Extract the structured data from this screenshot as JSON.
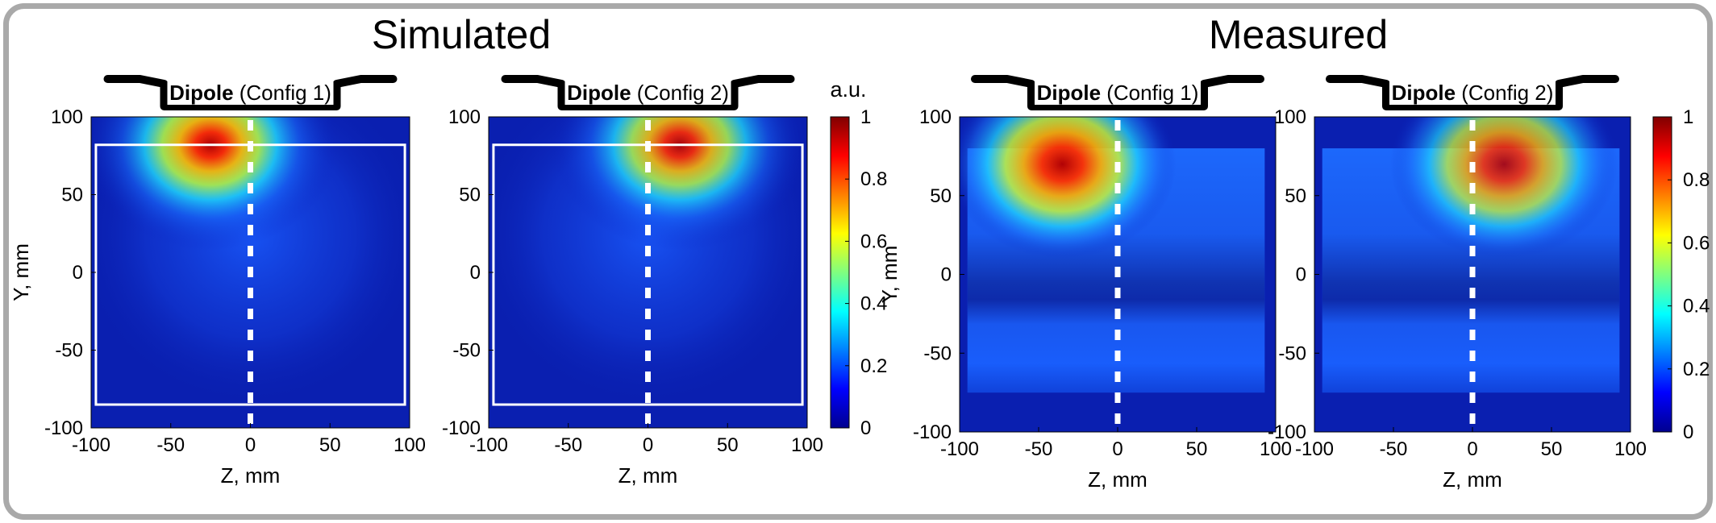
{
  "sections": [
    {
      "title": "Simulated"
    },
    {
      "title": "Measured"
    }
  ],
  "colorbars": [
    {
      "unit_label": "a.u.",
      "ticks": [
        "0",
        "0.2",
        "0.4",
        "0.6",
        "0.8",
        "1"
      ]
    },
    {
      "unit_label": "",
      "ticks": [
        "0",
        "0.2",
        "0.4",
        "0.6",
        "0.8",
        "1"
      ]
    }
  ],
  "chart_data": [
    {
      "type": "heatmap",
      "section": "Simulated",
      "header_bold": "Dipole",
      "header_normal": "(Config 1)",
      "xlabel": "Z, mm",
      "ylabel": "Y, mm",
      "xlim": [
        -100,
        100
      ],
      "ylim": [
        -100,
        100
      ],
      "xticks": [
        "-100",
        "-50",
        "0",
        "50",
        "100"
      ],
      "yticks": [
        "100",
        "50",
        "0",
        "-50",
        "-100"
      ],
      "colormap": "jet",
      "clim": [
        0,
        1
      ],
      "peak": {
        "z": -25,
        "y": 82,
        "value": 1.0
      },
      "outline_box": {
        "z": [
          -97,
          97
        ],
        "y": [
          -85,
          82
        ]
      },
      "centerline_z": 0
    },
    {
      "type": "heatmap",
      "section": "Simulated",
      "header_bold": "Dipole",
      "header_normal": "(Config 2)",
      "xlabel": "Z, mm",
      "ylabel": "",
      "xlim": [
        -100,
        100
      ],
      "ylim": [
        -100,
        100
      ],
      "xticks": [
        "-100",
        "-50",
        "0",
        "50",
        "100"
      ],
      "yticks": [
        "100",
        "50",
        "0",
        "-50",
        "-100"
      ],
      "colormap": "jet",
      "clim": [
        0,
        1
      ],
      "peak": {
        "z": 20,
        "y": 82,
        "value": 0.95
      },
      "outline_box": {
        "z": [
          -97,
          97
        ],
        "y": [
          -85,
          82
        ]
      },
      "centerline_z": 0
    },
    {
      "type": "heatmap",
      "section": "Measured",
      "header_bold": "Dipole",
      "header_normal": "(Config 1)",
      "xlabel": "Z, mm",
      "ylabel": "Y, mm",
      "xlim": [
        -100,
        100
      ],
      "ylim": [
        -100,
        100
      ],
      "xticks": [
        "-100",
        "-50",
        "0",
        "50",
        "100"
      ],
      "yticks": [
        "100",
        "50",
        "0",
        "-50",
        "-100"
      ],
      "colormap": "jet",
      "clim": [
        0,
        1
      ],
      "peak": {
        "z": -35,
        "y": 70,
        "value": 1.0
      },
      "measured_region": {
        "z": [
          -95,
          93
        ],
        "y": [
          -75,
          80
        ]
      },
      "centerline_z": 0
    },
    {
      "type": "heatmap",
      "section": "Measured",
      "header_bold": "Dipole",
      "header_normal": "(Config 2)",
      "xlabel": "Z, mm",
      "ylabel": "",
      "xlim": [
        -100,
        100
      ],
      "ylim": [
        -100,
        100
      ],
      "xticks": [
        "-100",
        "-50",
        "0",
        "50",
        "100"
      ],
      "yticks": [
        "100",
        "50",
        "0",
        "-50",
        "-100"
      ],
      "colormap": "jet",
      "clim": [
        0,
        1
      ],
      "peak": {
        "z": 20,
        "y": 70,
        "value": 0.9
      },
      "measured_region": {
        "z": [
          -95,
          93
        ],
        "y": [
          -75,
          80
        ]
      },
      "centerline_z": 0
    }
  ]
}
